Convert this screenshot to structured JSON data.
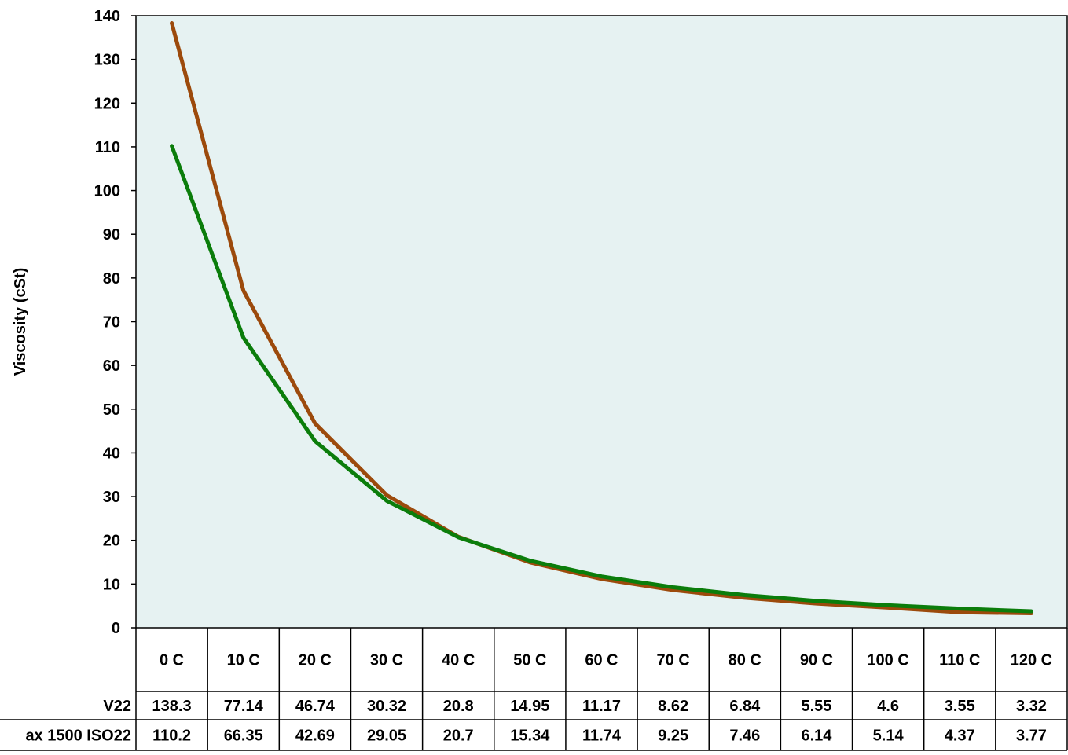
{
  "chart_data": {
    "type": "line",
    "title": "",
    "xlabel": "",
    "ylabel": "Viscosity (cSt)",
    "ylim": [
      0,
      140
    ],
    "y_ticks": [
      "0",
      "10",
      "20",
      "30",
      "40",
      "50",
      "60",
      "70",
      "80",
      "90",
      "100",
      "110",
      "120",
      "130",
      "140"
    ],
    "categories": [
      "0 C",
      "10 C",
      "20 C",
      "30 C",
      "40 C",
      "50 C",
      "60 C",
      "70 C",
      "80 C",
      "90 C",
      "100 C",
      "110 C",
      "120 C"
    ],
    "grid": false,
    "legend": "data-table",
    "plot_background": "#e6f2f2",
    "series": [
      {
        "name": "V22",
        "color": "#9c4a0c",
        "values": [
          138.3,
          77.14,
          46.74,
          30.32,
          20.8,
          14.95,
          11.17,
          8.62,
          6.84,
          5.55,
          4.6,
          3.55,
          3.32
        ],
        "labels": [
          "138.3",
          "77.14",
          "46.74",
          "30.32",
          "20.8",
          "14.95",
          "11.17",
          "8.62",
          "6.84",
          "5.55",
          "4.6",
          "3.55",
          "3.32"
        ]
      },
      {
        "name": "ax 1500 ISO22",
        "color": "#0b7d0b",
        "values": [
          110.2,
          66.35,
          42.69,
          29.05,
          20.7,
          15.34,
          11.74,
          9.25,
          7.46,
          6.14,
          5.14,
          4.37,
          3.77
        ],
        "labels": [
          "110.2",
          "66.35",
          "42.69",
          "29.05",
          "20.7",
          "15.34",
          "11.74",
          "9.25",
          "7.46",
          "6.14",
          "5.14",
          "4.37",
          "3.77"
        ]
      }
    ]
  }
}
